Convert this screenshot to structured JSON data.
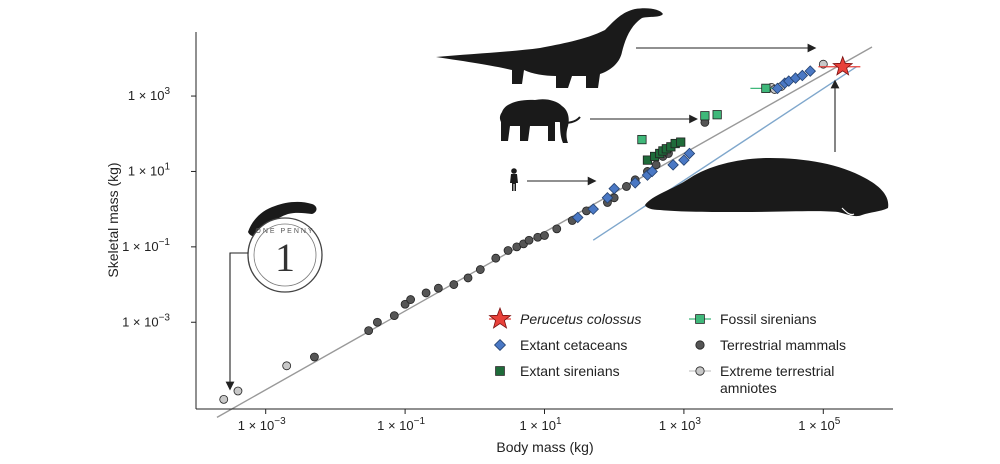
{
  "chart_data": {
    "type": "scatter",
    "title": "",
    "xlabel": "Body mass (kg)",
    "ylabel": "Skeletal mass (kg)",
    "xscale": "log",
    "yscale": "log",
    "xlim": [
      0.0001,
      1000000
    ],
    "ylim": [
      5e-06,
      50000
    ],
    "grid": false,
    "legend_position": "bottom-right",
    "xticks": [
      {
        "value": 0.001,
        "base": "1 × 10",
        "exp": "−3"
      },
      {
        "value": 0.1,
        "base": "1 × 10",
        "exp": "−1"
      },
      {
        "value": 10,
        "base": "1 × 10",
        "exp": "1"
      },
      {
        "value": 1000,
        "base": "1 × 10",
        "exp": "3"
      },
      {
        "value": 100000,
        "base": "1 × 10",
        "exp": "5"
      }
    ],
    "yticks": [
      {
        "value": 0.001,
        "base": "1 × 10",
        "exp": "−3"
      },
      {
        "value": 0.1,
        "base": "1 × 10",
        "exp": "−1"
      },
      {
        "value": 10,
        "base": "1 × 10",
        "exp": "1"
      },
      {
        "value": 1000,
        "base": "1 × 10",
        "exp": "3"
      }
    ],
    "reference_lines": [
      {
        "color": "#999999",
        "points": [
          [
            0.0002,
            3e-06
          ],
          [
            500000,
            20000
          ]
        ]
      },
      {
        "color": "#7fa7cc",
        "points": [
          [
            50,
            0.15
          ],
          [
            300000,
            6000
          ]
        ]
      }
    ],
    "series": [
      {
        "name": "Perucetus colossus",
        "italic": true,
        "marker": "star",
        "color": "#e8413a",
        "points": [
          [
            190000,
            6000
          ]
        ],
        "xerr": [
          [
            85000,
            340000
          ]
        ]
      },
      {
        "name": "Extant cetaceans",
        "marker": "diamond",
        "color": "#4a78c4",
        "points": [
          [
            30,
            0.6
          ],
          [
            50,
            1.0
          ],
          [
            80,
            2.0
          ],
          [
            100,
            3.5
          ],
          [
            200,
            5.0
          ],
          [
            300,
            8.0
          ],
          [
            350,
            10
          ],
          [
            700,
            15
          ],
          [
            1000,
            20
          ],
          [
            1200,
            30
          ],
          [
            22000,
            1600
          ],
          [
            28000,
            2200
          ],
          [
            32000,
            2500
          ],
          [
            40000,
            3000
          ],
          [
            50000,
            3500
          ],
          [
            65000,
            4600
          ]
        ]
      },
      {
        "name": "Extant sirenians",
        "marker": "square",
        "color": "#1f6b3a",
        "points": [
          [
            300,
            20
          ],
          [
            380,
            25
          ],
          [
            450,
            30
          ],
          [
            500,
            35
          ],
          [
            560,
            40
          ],
          [
            650,
            45
          ],
          [
            750,
            55
          ],
          [
            900,
            60
          ]
        ]
      },
      {
        "name": "Fossil sirenians",
        "marker": "square",
        "color": "#3fb87a",
        "points": [
          [
            250,
            70
          ],
          [
            2000,
            300
          ],
          [
            3000,
            320
          ],
          [
            15000,
            1600
          ]
        ],
        "xerr": [
          [
            null,
            null
          ],
          [
            null,
            null
          ],
          [
            null,
            null
          ],
          [
            9000,
            22000
          ]
        ]
      },
      {
        "name": "Terrestrial mammals",
        "marker": "circle",
        "color": "#555555",
        "points": [
          [
            0.005,
            0.00012
          ],
          [
            0.03,
            0.0006
          ],
          [
            0.04,
            0.001
          ],
          [
            0.07,
            0.0015
          ],
          [
            0.1,
            0.003
          ],
          [
            0.12,
            0.004
          ],
          [
            0.2,
            0.006
          ],
          [
            0.3,
            0.008
          ],
          [
            0.5,
            0.01
          ],
          [
            0.8,
            0.015
          ],
          [
            1.2,
            0.025
          ],
          [
            2,
            0.05
          ],
          [
            3,
            0.08
          ],
          [
            4,
            0.1
          ],
          [
            5,
            0.12
          ],
          [
            6,
            0.15
          ],
          [
            8,
            0.18
          ],
          [
            10,
            0.2
          ],
          [
            15,
            0.3
          ],
          [
            25,
            0.5
          ],
          [
            40,
            0.9
          ],
          [
            80,
            1.5
          ],
          [
            100,
            2
          ],
          [
            150,
            4
          ],
          [
            200,
            6
          ],
          [
            300,
            10
          ],
          [
            400,
            15
          ],
          [
            500,
            25
          ],
          [
            600,
            30
          ],
          [
            2000,
            200
          ]
        ]
      },
      {
        "name": "Extreme terrestrial amniotes",
        "marker": "circle",
        "color": "#c8c8c8",
        "points": [
          [
            0.00025,
            9e-06
          ],
          [
            0.0004,
            1.5e-05
          ],
          [
            0.002,
            7e-05
          ],
          [
            18000,
            1700
          ],
          [
            20000,
            1500
          ],
          [
            25000,
            1800
          ],
          [
            100000,
            7000
          ]
        ]
      }
    ],
    "legend": [
      {
        "label": "Perucetus colossus",
        "italic": true,
        "marker": "star",
        "color": "#e8413a",
        "errorbar": true
      },
      {
        "label": "Fossil sirenians",
        "marker": "square",
        "color": "#3fb87a",
        "errorbar": true
      },
      {
        "label": "Extant cetaceans",
        "marker": "diamond",
        "color": "#4a78c4"
      },
      {
        "label": "Terrestrial mammals",
        "marker": "circle",
        "color": "#555555"
      },
      {
        "label": "Extant sirenians",
        "marker": "square",
        "color": "#1f6b3a"
      },
      {
        "label": "Extreme terrestrial",
        "label2": "amniotes",
        "marker": "circle",
        "color": "#c8c8c8",
        "errorbar": true
      }
    ],
    "illustrations": [
      {
        "name": "sauropod-silhouette",
        "points_to": [
          100000,
          7000
        ]
      },
      {
        "name": "elephant-silhouette",
        "points_to": [
          2000,
          200
        ]
      },
      {
        "name": "human-silhouette",
        "points_to": [
          70,
          6
        ]
      },
      {
        "name": "perucetus-silhouette",
        "points_to": [
          190000,
          6000
        ]
      },
      {
        "name": "one-penny-coin",
        "coin_text": "ONE PENNY",
        "coin_numeral": "1",
        "points_to": [
          0.00025,
          9e-06
        ]
      },
      {
        "name": "salamander-silhouette"
      }
    ]
  }
}
